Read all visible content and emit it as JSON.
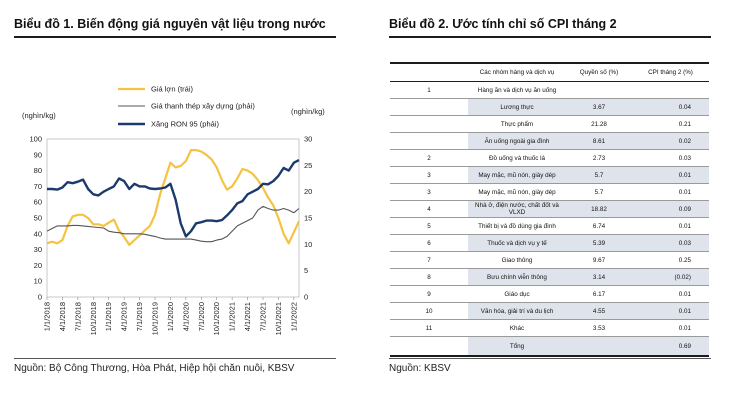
{
  "left": {
    "title": "Biểu đồ 1. Biến động giá nguyên vật liệu trong nước",
    "source": "Nguồn: Bộ Công Thương, Hòa Phát, Hiệp hội chăn nuôi, KBSV"
  },
  "right": {
    "title": "Biểu đồ 2. Ước tính chỉ số CPI tháng 2",
    "source": "Nguồn: KBSV"
  },
  "colors": {
    "pork": "#f5c342",
    "steel": "#555555",
    "ron95": "#1c3a6b",
    "shade": "#dfe4ec"
  },
  "chart_data": [
    {
      "type": "line",
      "left_unit": "(nghìn/kg)",
      "right_unit": "(nghìn/kg)",
      "left_ylim": [
        0,
        100
      ],
      "right_ylim": [
        0,
        30
      ],
      "left_ticks": [
        "0",
        "10",
        "20",
        "30",
        "40",
        "50",
        "60",
        "70",
        "80",
        "90",
        "100"
      ],
      "right_ticks": [
        "0",
        "5",
        "10",
        "15",
        "20",
        "25",
        "30"
      ],
      "legend_position": "top-center",
      "x_ticks": [
        "1/1/2018",
        "4/1/2018",
        "7/1/2018",
        "10/1/2018",
        "1/1/2019",
        "4/1/2019",
        "7/1/2019",
        "10/1/2019",
        "1/1/2020",
        "4/1/2020",
        "7/1/2020",
        "10/1/2020",
        "1/1/2021",
        "4/1/2021",
        "7/1/2021",
        "10/1/2021",
        "1/1/2022"
      ],
      "x": [
        "1/2018",
        "2/2018",
        "3/2018",
        "4/2018",
        "5/2018",
        "6/2018",
        "7/2018",
        "8/2018",
        "9/2018",
        "10/2018",
        "11/2018",
        "12/2018",
        "1/2019",
        "2/2019",
        "3/2019",
        "4/2019",
        "5/2019",
        "6/2019",
        "7/2019",
        "8/2019",
        "9/2019",
        "10/2019",
        "11/2019",
        "12/2019",
        "1/2020",
        "2/2020",
        "3/2020",
        "4/2020",
        "5/2020",
        "6/2020",
        "7/2020",
        "8/2020",
        "9/2020",
        "10/2020",
        "11/2020",
        "12/2020",
        "1/2021",
        "2/2021",
        "3/2021",
        "4/2021",
        "5/2021",
        "6/2021",
        "7/2021",
        "8/2021",
        "9/2021",
        "10/2021",
        "11/2021",
        "12/2021",
        "1/2022",
        "2/2022"
      ],
      "series": [
        {
          "name": "Giá lợn (trái)",
          "axis": "left",
          "values": [
            34,
            35,
            34,
            36,
            45,
            51,
            52,
            52,
            50,
            46,
            46,
            45,
            47,
            49,
            42,
            38,
            33,
            36,
            39,
            42,
            45,
            52,
            65,
            75,
            85,
            82,
            83,
            86,
            93,
            93,
            92,
            90,
            87,
            82,
            74,
            68,
            70,
            75,
            81,
            80,
            78,
            74,
            69,
            63,
            58,
            50,
            40,
            34,
            41,
            48
          ]
        },
        {
          "name": "Giá thanh thép xây dựng (phải)",
          "axis": "right",
          "values": [
            12.5,
            13.0,
            13.5,
            13.5,
            13.5,
            13.6,
            13.6,
            13.5,
            13.4,
            13.3,
            13.2,
            13.1,
            12.5,
            12.3,
            12.2,
            12.0,
            12.0,
            12.0,
            12.0,
            11.9,
            11.7,
            11.5,
            11.2,
            11.0,
            11.0,
            11.0,
            11.0,
            11.0,
            11.0,
            10.8,
            10.6,
            10.5,
            10.5,
            10.8,
            11.0,
            11.5,
            12.5,
            13.5,
            14.0,
            14.5,
            15.0,
            16.5,
            17.2,
            16.8,
            16.5,
            16.5,
            16.8,
            16.5,
            16.0,
            16.8
          ]
        },
        {
          "name": "Xăng RON 95 (phải)",
          "axis": "right",
          "values": [
            20.5,
            20.5,
            20.4,
            20.8,
            21.8,
            21.6,
            21.9,
            22.3,
            20.5,
            19.5,
            19.3,
            20.0,
            20.5,
            21.0,
            22.5,
            22.0,
            20.5,
            21.5,
            21.0,
            21.0,
            20.6,
            20.5,
            20.6,
            20.8,
            21.5,
            18.5,
            14.0,
            11.5,
            12.5,
            14.0,
            14.2,
            14.5,
            14.5,
            14.4,
            14.6,
            15.5,
            16.5,
            17.8,
            18.2,
            19.5,
            20.0,
            20.5,
            21.5,
            21.4,
            22.0,
            23.0,
            24.5,
            24.0,
            25.5,
            26.0
          ]
        }
      ]
    },
    {
      "type": "table",
      "columns": [
        "",
        "Các nhóm hàng và dịch vụ",
        "Quyền số (%)",
        "CPI tháng 2 (%)"
      ],
      "rows": [
        {
          "id": "1",
          "name": "Hàng ăn và dịch vụ ăn uống",
          "weight": "",
          "cpi": "",
          "shade": false
        },
        {
          "id": "",
          "name": "Lương thực",
          "weight": "3.67",
          "cpi": "0.04",
          "shade": true
        },
        {
          "id": "",
          "name": "Thực phẩm",
          "weight": "21.28",
          "cpi": "0.21",
          "shade": false
        },
        {
          "id": "",
          "name": "Ăn uống ngoài gia đình",
          "weight": "8.61",
          "cpi": "0.02",
          "shade": true
        },
        {
          "id": "2",
          "name": "Đồ uống và thuốc lá",
          "weight": "2.73",
          "cpi": "0.03",
          "shade": false
        },
        {
          "id": "3",
          "name": "May mặc, mũ nón, giày dép",
          "weight": "5.7",
          "cpi": "0.01",
          "shade": true
        },
        {
          "id": "3",
          "name": "May mặc, mũ nón, giày dép",
          "weight": "5.7",
          "cpi": "0.01",
          "shade": false
        },
        {
          "id": "4",
          "name": "Nhà ở, điện nước, chất đốt và VLXD",
          "weight": "18.82",
          "cpi": "0.09",
          "shade": true
        },
        {
          "id": "5",
          "name": "Thiết bị và đồ dùng gia đình",
          "weight": "6.74",
          "cpi": "0.01",
          "shade": false
        },
        {
          "id": "6",
          "name": "Thuốc và dịch vụ y tế",
          "weight": "5.39",
          "cpi": "0.03",
          "shade": true
        },
        {
          "id": "7",
          "name": "Giao thông",
          "weight": "9.67",
          "cpi": "0.25",
          "shade": false
        },
        {
          "id": "8",
          "name": "Bưu chính viễn thông",
          "weight": "3.14",
          "cpi": "(0.02)",
          "shade": true
        },
        {
          "id": "9",
          "name": "Giáo dục",
          "weight": "6.17",
          "cpi": "0.01",
          "shade": false
        },
        {
          "id": "10",
          "name": "Văn hóa, giải trí và du lịch",
          "weight": "4.55",
          "cpi": "0.01",
          "shade": true
        },
        {
          "id": "11",
          "name": "Khác",
          "weight": "3.53",
          "cpi": "0.01",
          "shade": false
        }
      ],
      "total": {
        "label": "Tổng",
        "cpi": "0.69"
      }
    }
  ]
}
